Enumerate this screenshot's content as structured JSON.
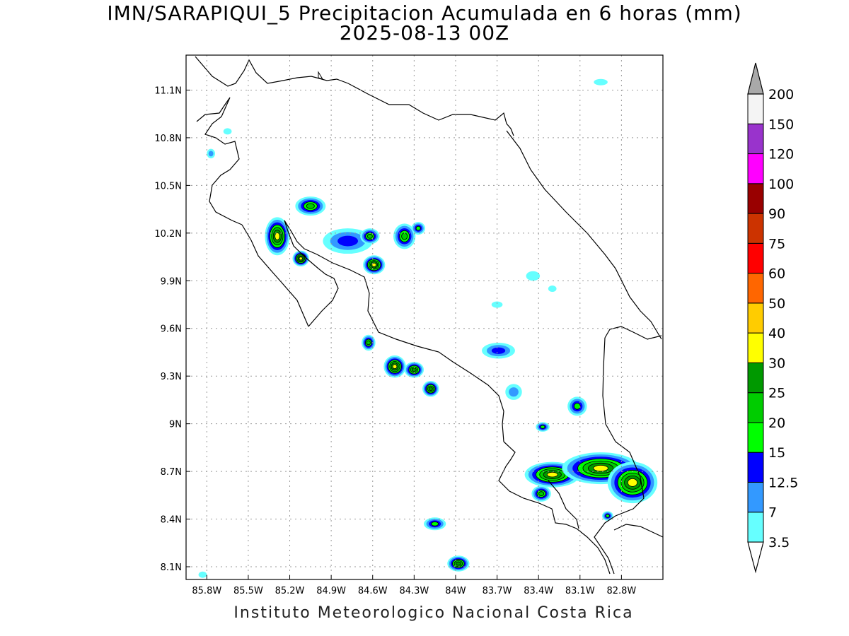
{
  "title": {
    "line1": "IMN/SARAPIQUI_5 Precipitacion Acumulada en 6 horas (mm)",
    "line2": "2025-08-13 00Z"
  },
  "footer": "Instituto Meteorologico Nacional Costa Rica",
  "chart_data": {
    "type": "heatmap",
    "map_type": "precipitation contour map",
    "region": "Costa Rica",
    "lon_range": [
      -85.95,
      -82.5
    ],
    "lat_range": [
      8.02,
      11.32
    ],
    "lon_ticks": [
      {
        "value": -85.8,
        "label": "85.8W"
      },
      {
        "value": -85.5,
        "label": "85.5W"
      },
      {
        "value": -85.2,
        "label": "85.2W"
      },
      {
        "value": -84.9,
        "label": "84.9W"
      },
      {
        "value": -84.6,
        "label": "84.6W"
      },
      {
        "value": -84.3,
        "label": "84.3W"
      },
      {
        "value": -84.0,
        "label": "84W"
      },
      {
        "value": -83.7,
        "label": "83.7W"
      },
      {
        "value": -83.4,
        "label": "83.4W"
      },
      {
        "value": -83.1,
        "label": "83.1W"
      },
      {
        "value": -82.8,
        "label": "82.8W"
      }
    ],
    "lat_ticks": [
      {
        "value": 11.1,
        "label": "11.1N"
      },
      {
        "value": 10.8,
        "label": "10.8N"
      },
      {
        "value": 10.5,
        "label": "10.5N"
      },
      {
        "value": 10.2,
        "label": "10.2N"
      },
      {
        "value": 9.9,
        "label": "9.9N"
      },
      {
        "value": 9.6,
        "label": "9.6N"
      },
      {
        "value": 9.3,
        "label": "9.3N"
      },
      {
        "value": 9.0,
        "label": "9N"
      },
      {
        "value": 8.7,
        "label": "8.7N"
      },
      {
        "value": 8.4,
        "label": "8.4N"
      },
      {
        "value": 8.1,
        "label": "8.1N"
      }
    ],
    "grid": true,
    "colorbar": {
      "placement": "right",
      "levels": [
        "3.5",
        "7",
        "12.5",
        "15",
        "20",
        "25",
        "30",
        "40",
        "50",
        "60",
        "75",
        "90",
        "100",
        "120",
        "150",
        "200"
      ],
      "colors": [
        "#66ffff",
        "#3399ff",
        "#0000ff",
        "#00ff00",
        "#00cc00",
        "#009900",
        "#ffff00",
        "#ffcc00",
        "#ff6600",
        "#ff0000",
        "#cc3300",
        "#990000",
        "#ff00ff",
        "#9933cc",
        "#f4f4f4",
        "#a9a9a9"
      ]
    },
    "precip_cells": [
      {
        "lon": -85.29,
        "lat": 10.18,
        "rx": 0.09,
        "ry": 0.12,
        "peak": 35
      },
      {
        "lon": -85.12,
        "lat": 10.04,
        "rx": 0.06,
        "ry": 0.05,
        "peak": 32
      },
      {
        "lon": -85.05,
        "lat": 10.37,
        "rx": 0.11,
        "ry": 0.06,
        "peak": 22
      },
      {
        "lon": -84.78,
        "lat": 10.15,
        "rx": 0.18,
        "ry": 0.08,
        "peak": 13
      },
      {
        "lon": -84.62,
        "lat": 10.18,
        "rx": 0.07,
        "ry": 0.05,
        "peak": 22
      },
      {
        "lon": -84.59,
        "lat": 10.0,
        "rx": 0.08,
        "ry": 0.06,
        "peak": 35
      },
      {
        "lon": -84.37,
        "lat": 10.18,
        "rx": 0.08,
        "ry": 0.08,
        "peak": 20
      },
      {
        "lon": -84.27,
        "lat": 10.23,
        "rx": 0.05,
        "ry": 0.04,
        "peak": 18
      },
      {
        "lon": -85.77,
        "lat": 10.7,
        "rx": 0.03,
        "ry": 0.03,
        "peak": 10
      },
      {
        "lon": -85.65,
        "lat": 10.84,
        "rx": 0.03,
        "ry": 0.02,
        "peak": 5
      },
      {
        "lon": -84.63,
        "lat": 9.51,
        "rx": 0.05,
        "ry": 0.05,
        "peak": 22
      },
      {
        "lon": -84.44,
        "lat": 9.36,
        "rx": 0.08,
        "ry": 0.07,
        "peak": 35
      },
      {
        "lon": -84.3,
        "lat": 9.34,
        "rx": 0.07,
        "ry": 0.05,
        "peak": 26
      },
      {
        "lon": -84.18,
        "lat": 9.22,
        "rx": 0.06,
        "ry": 0.05,
        "peak": 27
      },
      {
        "lon": -83.69,
        "lat": 9.46,
        "rx": 0.12,
        "ry": 0.05,
        "peak": 14
      },
      {
        "lon": -83.58,
        "lat": 9.2,
        "rx": 0.06,
        "ry": 0.05,
        "peak": 9
      },
      {
        "lon": -83.12,
        "lat": 9.11,
        "rx": 0.07,
        "ry": 0.06,
        "peak": 18
      },
      {
        "lon": -83.37,
        "lat": 8.98,
        "rx": 0.05,
        "ry": 0.03,
        "peak": 15
      },
      {
        "lon": -83.3,
        "lat": 8.68,
        "rx": 0.2,
        "ry": 0.08,
        "peak": 32
      },
      {
        "lon": -82.95,
        "lat": 8.72,
        "rx": 0.28,
        "ry": 0.1,
        "peak": 38
      },
      {
        "lon": -82.72,
        "lat": 8.63,
        "rx": 0.18,
        "ry": 0.13,
        "peak": 34
      },
      {
        "lon": -83.38,
        "lat": 8.56,
        "rx": 0.07,
        "ry": 0.05,
        "peak": 22
      },
      {
        "lon": -82.9,
        "lat": 8.42,
        "rx": 0.04,
        "ry": 0.03,
        "peak": 15
      },
      {
        "lon": -84.15,
        "lat": 8.37,
        "rx": 0.08,
        "ry": 0.04,
        "peak": 18
      },
      {
        "lon": -83.98,
        "lat": 8.12,
        "rx": 0.08,
        "ry": 0.05,
        "peak": 26
      },
      {
        "lon": -82.95,
        "lat": 11.15,
        "rx": 0.05,
        "ry": 0.02,
        "peak": 5
      },
      {
        "lon": -85.83,
        "lat": 8.05,
        "rx": 0.03,
        "ry": 0.02,
        "peak": 5
      },
      {
        "lon": -83.44,
        "lat": 9.93,
        "rx": 0.05,
        "ry": 0.03,
        "peak": 5
      },
      {
        "lon": -83.3,
        "lat": 9.85,
        "rx": 0.03,
        "ry": 0.02,
        "peak": 5
      },
      {
        "lon": -83.7,
        "lat": 9.75,
        "rx": 0.04,
        "ry": 0.02,
        "peak": 6
      }
    ]
  }
}
